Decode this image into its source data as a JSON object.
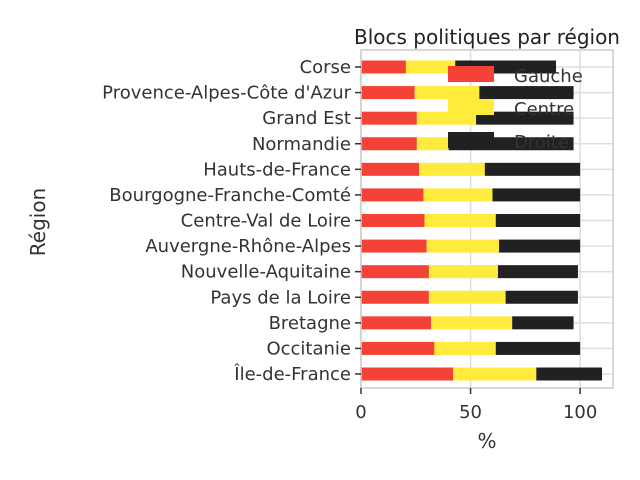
{
  "chart_data": {
    "type": "bar",
    "orientation": "horizontal",
    "stacked": true,
    "title": "Blocs politiques par région",
    "xlabel": "%",
    "ylabel": "Région",
    "xlim": [
      0,
      115
    ],
    "xticks": [
      0,
      50,
      100
    ],
    "grid": true,
    "legend_position": "top-right",
    "categories": [
      "Île-de-France",
      "Occitanie",
      "Bretagne",
      "Pays de la Loire",
      "Nouvelle-Aquitaine",
      "Auvergne-Rhône-Alpes",
      "Centre-Val de Loire",
      "Bourgogne-Franche-Comté",
      "Hauts-de-France",
      "Normandie",
      "Grand Est",
      "Provence-Alpes-Côte d'Azur",
      "Corse"
    ],
    "series": [
      {
        "name": "Gauche",
        "color": "#f44336",
        "values": [
          42,
          33.5,
          32,
          31,
          31,
          30,
          29,
          28.5,
          26.5,
          25.5,
          25.5,
          24.5,
          20.5
        ]
      },
      {
        "name": "Centre",
        "color": "#ffeb3b",
        "values": [
          38,
          28,
          37,
          35,
          31.5,
          33,
          32.5,
          31.5,
          30,
          14.5,
          27,
          29.5,
          22.5
        ]
      },
      {
        "name": "Droite",
        "color": "#212121",
        "values": [
          30,
          38.5,
          28,
          33,
          36.5,
          37,
          38.5,
          40,
          43.5,
          57,
          44.5,
          43,
          46
        ]
      }
    ]
  }
}
